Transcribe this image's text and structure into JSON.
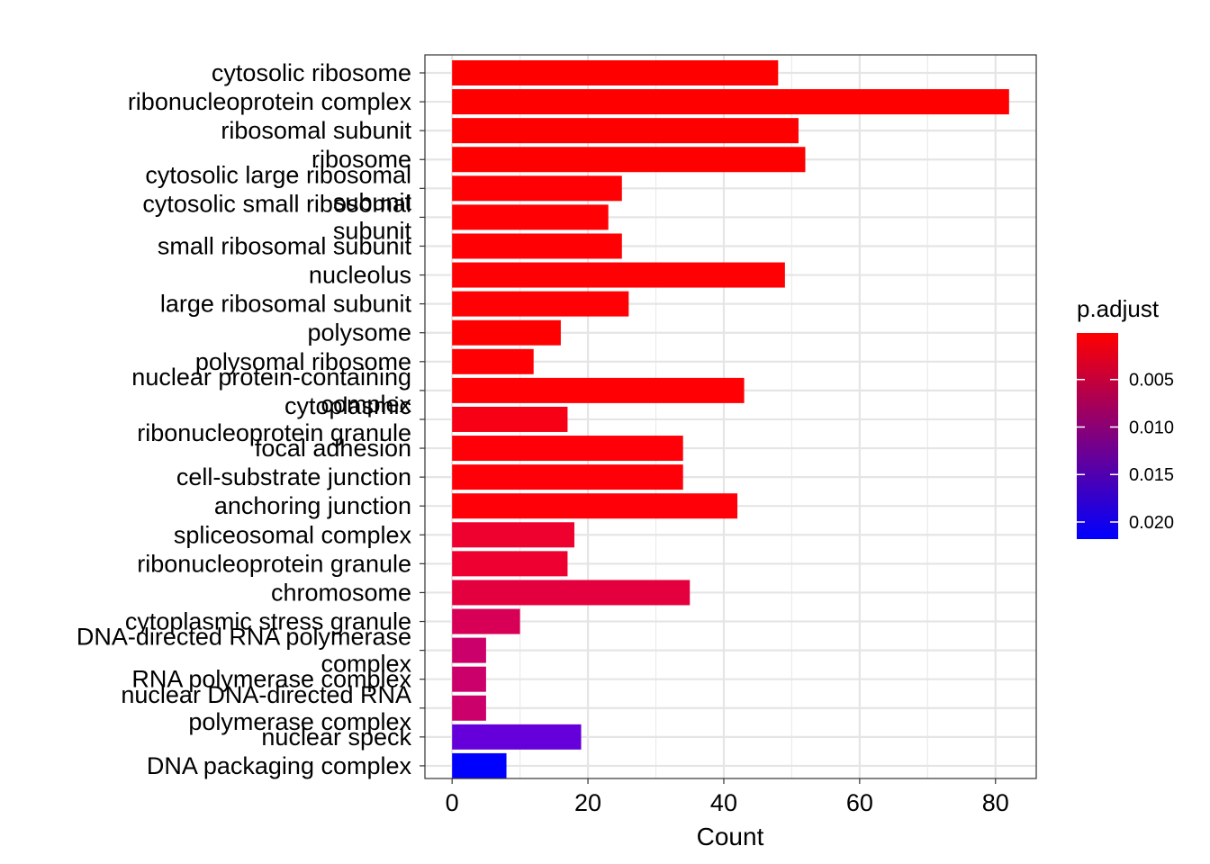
{
  "chart_data": {
    "type": "bar",
    "orientation": "horizontal",
    "title": "",
    "xlabel": "Count",
    "ylabel": "",
    "xlim": [
      -4,
      86
    ],
    "x_ticks": [
      0,
      20,
      40,
      60,
      80
    ],
    "grid": true,
    "categories": [
      "cytosolic ribosome",
      "ribonucleoprotein complex",
      "ribosomal subunit",
      "ribosome",
      "cytosolic large ribosomal subunit",
      "cytosolic small ribosomal subunit",
      "small ribosomal subunit",
      "nucleolus",
      "large ribosomal subunit",
      "polysome",
      "polysomal ribosome",
      "nuclear protein-containing complex",
      "cytoplasmic ribonucleoprotein granule",
      "focal adhesion",
      "cell-substrate junction",
      "anchoring junction",
      "spliceosomal complex",
      "ribonucleoprotein granule",
      "chromosome",
      "cytoplasmic stress granule",
      "DNA-directed RNA polymerase complex",
      "RNA polymerase complex",
      "nuclear DNA-directed RNA polymerase complex",
      "nuclear speck",
      "DNA packaging complex"
    ],
    "label_lines": [
      [
        "cytosolic ribosome"
      ],
      [
        "ribonucleoprotein complex"
      ],
      [
        "ribosomal subunit"
      ],
      [
        "ribosome"
      ],
      [
        "cytosolic large ribosomal",
        "subunit"
      ],
      [
        "cytosolic small ribosomal",
        "subunit"
      ],
      [
        "small ribosomal subunit"
      ],
      [
        "nucleolus"
      ],
      [
        "large ribosomal subunit"
      ],
      [
        "polysome"
      ],
      [
        "polysomal ribosome"
      ],
      [
        "nuclear protein-containing",
        "complex"
      ],
      [
        "cytoplasmic",
        "ribonucleoprotein granule"
      ],
      [
        "focal adhesion"
      ],
      [
        "cell-substrate junction"
      ],
      [
        "anchoring junction"
      ],
      [
        "spliceosomal complex"
      ],
      [
        "ribonucleoprotein granule"
      ],
      [
        "chromosome"
      ],
      [
        "cytoplasmic stress granule"
      ],
      [
        "DNA-directed RNA polymerase",
        "complex"
      ],
      [
        "RNA polymerase complex"
      ],
      [
        "nuclear DNA-directed RNA",
        "polymerase complex"
      ],
      [
        "nuclear speck"
      ],
      [
        "DNA packaging complex"
      ]
    ],
    "values": [
      48,
      82,
      51,
      52,
      25,
      23,
      25,
      49,
      26,
      16,
      12,
      43,
      17,
      34,
      34,
      42,
      18,
      17,
      35,
      10,
      5,
      5,
      5,
      19,
      8
    ],
    "fill_colors": [
      "#ff0000",
      "#ff0000",
      "#ff0000",
      "#ff0000",
      "#ff0004",
      "#ff0004",
      "#ff0004",
      "#ff0004",
      "#ff0004",
      "#ff0002",
      "#ff0004",
      "#ff0004",
      "#f70015",
      "#ff0008",
      "#ff0008",
      "#ff0008",
      "#ee002f",
      "#ee0030",
      "#e4003f",
      "#d80056",
      "#cc006a",
      "#cc006a",
      "#cc006a",
      "#6600da",
      "#0000ff"
    ],
    "legend": {
      "title": "p.adjust",
      "position": "right",
      "type": "gradient",
      "low_color": "#ff0000",
      "high_color": "#0000ff",
      "range": [
        0.0001,
        0.0218
      ],
      "ticks": [
        "0.005",
        "0.010",
        "0.015",
        "0.020"
      ],
      "tick_values": [
        0.005,
        0.01,
        0.015,
        0.02
      ]
    }
  }
}
